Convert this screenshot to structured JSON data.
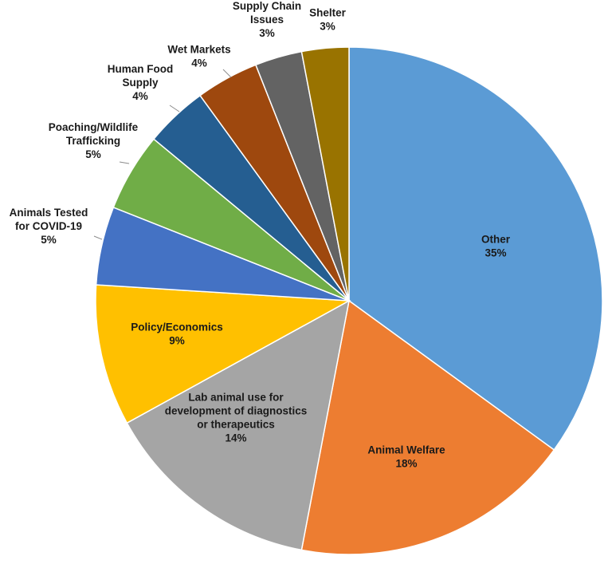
{
  "chart_data": {
    "type": "pie",
    "title": "",
    "slices": [
      {
        "category": "Other",
        "label_lines": [
          "Other"
        ],
        "value": 35,
        "pct_label": "35%",
        "color": "#5B9BD5"
      },
      {
        "category": "Animal Welfare",
        "label_lines": [
          "Animal Welfare"
        ],
        "value": 18,
        "pct_label": "18%",
        "color": "#ED7D31"
      },
      {
        "category": "Lab animal use for development of diagnostics or therapeutics",
        "label_lines": [
          "Lab animal use for",
          "development of diagnostics",
          "or therapeutics"
        ],
        "value": 14,
        "pct_label": "14%",
        "color": "#A5A5A5"
      },
      {
        "category": "Policy/Economics",
        "label_lines": [
          "Policy/Economics"
        ],
        "value": 9,
        "pct_label": "9%",
        "color": "#FFC000"
      },
      {
        "category": "Animals Tested for COVID-19",
        "label_lines": [
          "Animals Tested",
          "for COVID-19"
        ],
        "value": 5,
        "pct_label": "5%",
        "color": "#4472C4"
      },
      {
        "category": "Poaching/Wildlife Trafficking",
        "label_lines": [
          "Poaching/Wildlife",
          "Trafficking"
        ],
        "value": 5,
        "pct_label": "5%",
        "color": "#70AD47"
      },
      {
        "category": "Human Food Supply",
        "label_lines": [
          "Human Food",
          "Supply"
        ],
        "value": 4,
        "pct_label": "4%",
        "color": "#255E91"
      },
      {
        "category": "Wet Markets",
        "label_lines": [
          "Wet Markets"
        ],
        "value": 4,
        "pct_label": "4%",
        "color": "#9E480E"
      },
      {
        "category": "Supply Chain Issues",
        "label_lines": [
          "Supply Chain",
          "Issues"
        ],
        "value": 3,
        "pct_label": "3%",
        "color": "#636363"
      },
      {
        "category": "Shelter",
        "label_lines": [
          "Shelter"
        ],
        "value": 3,
        "pct_label": "3%",
        "color": "#997300"
      }
    ]
  }
}
